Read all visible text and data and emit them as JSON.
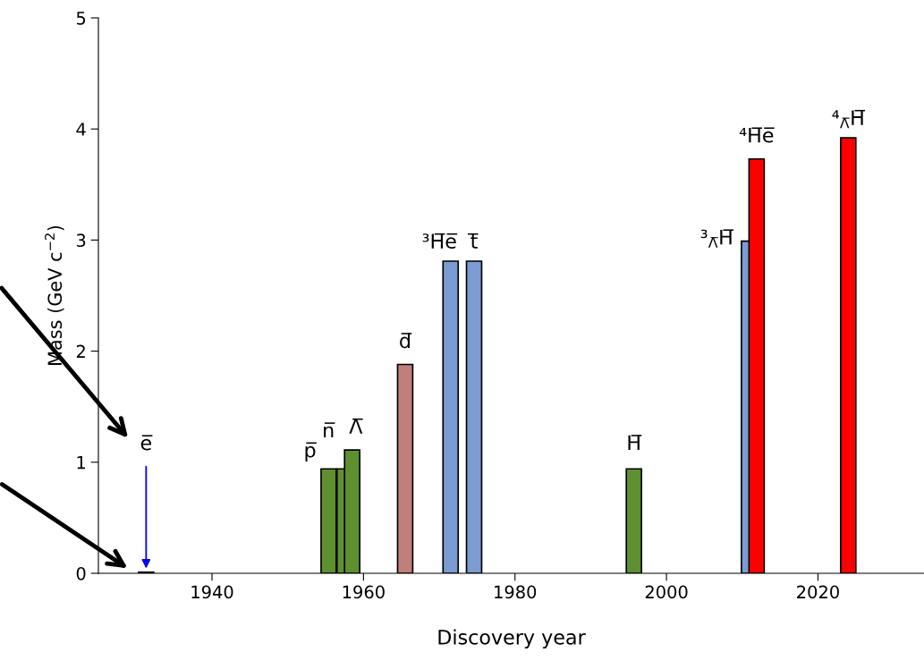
{
  "chart_data": {
    "type": "bar",
    "xlabel": "Discovery year",
    "ylabel": "Mass (GeV c$^{−2}$)",
    "x": [
      1931.3,
      1955.4,
      1957.5,
      1958.5,
      1965.5,
      1971.5,
      1974.6,
      1995.7,
      2010.9,
      2011.9,
      2024.0
    ],
    "values": [
      0.01,
      0.94,
      0.94,
      1.11,
      1.88,
      2.81,
      2.81,
      0.94,
      2.99,
      3.73,
      3.92
    ],
    "colors": [
      "#1c1c7a",
      "#5e9030",
      "#5e9030",
      "#5e9030",
      "#c07f7a",
      "#7b9bd2",
      "#7b9bd2",
      "#5e9030",
      "#7b9bd2",
      "#ff0000",
      "#ff0000"
    ],
    "xlim": [
      1925,
      2034
    ],
    "ylim": [
      0,
      5
    ],
    "xticks": [
      1940,
      1960,
      1980,
      2000,
      2020
    ],
    "yticks": [
      0,
      1,
      2,
      3,
      4,
      5
    ],
    "grid": false,
    "legend": false,
    "annotations": [
      {
        "text": "e̅",
        "x": 1931.3,
        "y": 0.01
      },
      {
        "text": "p̅",
        "x": 1955.4,
        "y": 0.94
      },
      {
        "text": "n̅",
        "x": 1957.5,
        "y": 0.94
      },
      {
        "text": "Λ̅",
        "x": 1958.5,
        "y": 1.11
      },
      {
        "text": "d̅",
        "x": 1965.5,
        "y": 1.88
      },
      {
        "text": "³H̅e̅",
        "x": 1971.5,
        "y": 2.81
      },
      {
        "text": "t̅",
        "x": 1974.6,
        "y": 2.81
      },
      {
        "text": "H̅",
        "x": 1995.7,
        "y": 0.94
      },
      {
        "text": "³$_{Λ̅}$H̅",
        "x": 2010.9,
        "y": 2.99
      },
      {
        "text": "⁴H̅e̅",
        "x": 2011.9,
        "y": 3.73
      },
      {
        "text": "⁴$_{Λ̅}$H̅",
        "x": 2024.0,
        "y": 3.92
      }
    ]
  }
}
